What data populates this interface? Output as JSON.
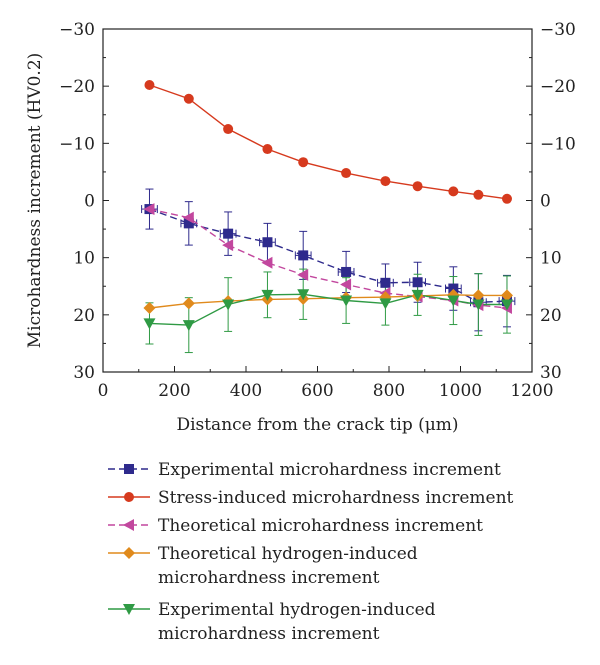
{
  "chart_data": {
    "type": "line",
    "xlabel": "Distance from the crack tip (μm)",
    "ylabel": "Microhardness increment (HV0.2)",
    "xlim": [
      0,
      1200
    ],
    "ylim": [
      -30,
      30
    ],
    "y_inverted": true,
    "right_axis_mirrored": true,
    "x_ticks": [
      "0",
      "200",
      "400",
      "600",
      "800",
      "1000",
      "1200"
    ],
    "y_ticks": [
      "−30",
      "−20",
      "−10",
      "0",
      "10",
      "20",
      "30"
    ],
    "grid": false,
    "legend_position": "below",
    "series": [
      {
        "name": "Experimental microhardness increment",
        "color": "#2e2a8c",
        "marker": "square",
        "dashed": true,
        "x": [
          130,
          240,
          350,
          460,
          560,
          680,
          790,
          880,
          980,
          1050,
          1130
        ],
        "y": [
          1.5,
          4,
          5.8,
          7.3,
          9.6,
          12.5,
          14.4,
          14.3,
          15.4,
          17.8,
          17.6
        ],
        "yerr": [
          3.5,
          3.8,
          3.8,
          3.3,
          4.2,
          3.6,
          3.3,
          3.5,
          3.8,
          5,
          4.5
        ],
        "xerr": [
          22,
          22,
          22,
          22,
          22,
          22,
          22,
          22,
          22,
          22,
          22
        ]
      },
      {
        "name": "Stress-induced microhardness increment",
        "color": "#d63a1e",
        "marker": "circle",
        "dashed": false,
        "x": [
          130,
          240,
          350,
          460,
          560,
          680,
          790,
          880,
          980,
          1050,
          1130
        ],
        "y": [
          -20.2,
          -17.8,
          -12.5,
          -9,
          -6.7,
          -4.8,
          -3.4,
          -2.5,
          -1.6,
          -1,
          -0.3
        ]
      },
      {
        "name": "Theoretical microhardness increment",
        "color": "#c2479e",
        "marker": "triangle-left",
        "dashed": true,
        "x": [
          130,
          240,
          350,
          460,
          560,
          680,
          790,
          880,
          980,
          1050,
          1130
        ],
        "y": [
          1.5,
          3,
          7.8,
          10.9,
          13,
          14.7,
          16.2,
          16.8,
          17.5,
          18.3,
          18.8
        ]
      },
      {
        "name": "Theoretical hydrogen-induced microhardness increment",
        "color": "#e08a1c",
        "marker": "diamond",
        "dashed": false,
        "x": [
          130,
          240,
          350,
          460,
          560,
          680,
          790,
          880,
          980,
          1050,
          1130
        ],
        "y": [
          18.8,
          18,
          17.6,
          17.3,
          17.2,
          17,
          16.9,
          16.7,
          16.5,
          16.6,
          16.6
        ]
      },
      {
        "name": "Experimental hydrogen-induced microhardness increment",
        "color": "#2f9a44",
        "marker": "triangle-down",
        "dashed": false,
        "x": [
          130,
          240,
          350,
          460,
          560,
          680,
          790,
          880,
          980,
          1050,
          1130
        ],
        "y": [
          21.5,
          21.8,
          18.2,
          16.5,
          16.4,
          17.5,
          18,
          16.5,
          17.5,
          18.2,
          18.2
        ],
        "yerr": [
          3.6,
          4.8,
          4.7,
          4,
          4.4,
          4,
          3.8,
          3.6,
          4.2,
          5.4,
          5
        ]
      }
    ]
  }
}
